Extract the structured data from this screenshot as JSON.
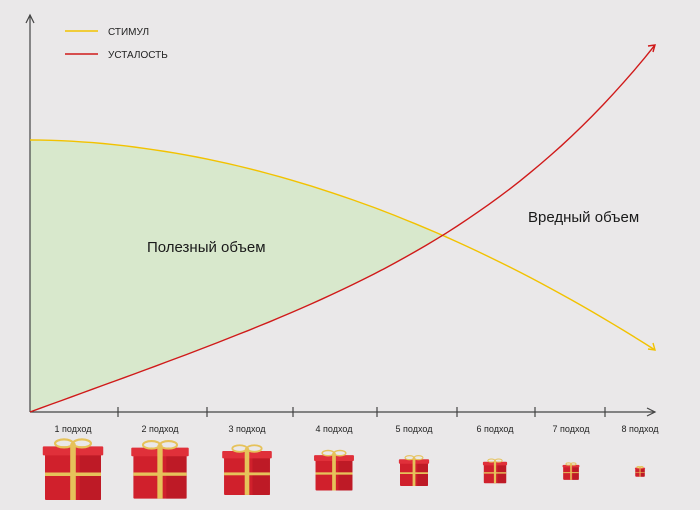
{
  "chart_data": {
    "type": "line",
    "title": "",
    "xlabel": "",
    "ylabel": "",
    "categories": [
      "1 подход",
      "2 подход",
      "3 подход",
      "4 подход",
      "5 подход",
      "6 подход",
      "7 подход",
      "8 подход"
    ],
    "series": [
      {
        "name": "СТИМУЛ",
        "color": "#f2c200"
      },
      {
        "name": "УСТАЛОСТЬ",
        "color": "#d01a1a"
      }
    ],
    "annotations": {
      "useful": "Полезный объем",
      "harmful": "Вредный объем"
    },
    "gift_box_scale": [
      1.0,
      0.95,
      0.82,
      0.66,
      0.5,
      0.4,
      0.28,
      0.17
    ],
    "colors": {
      "useful_area": "#d8e8cc",
      "axis": "#444444",
      "gift_red": "#d0202c",
      "gift_ribbon": "#e6c25a"
    },
    "grid": false,
    "legend_position": "top-left"
  }
}
